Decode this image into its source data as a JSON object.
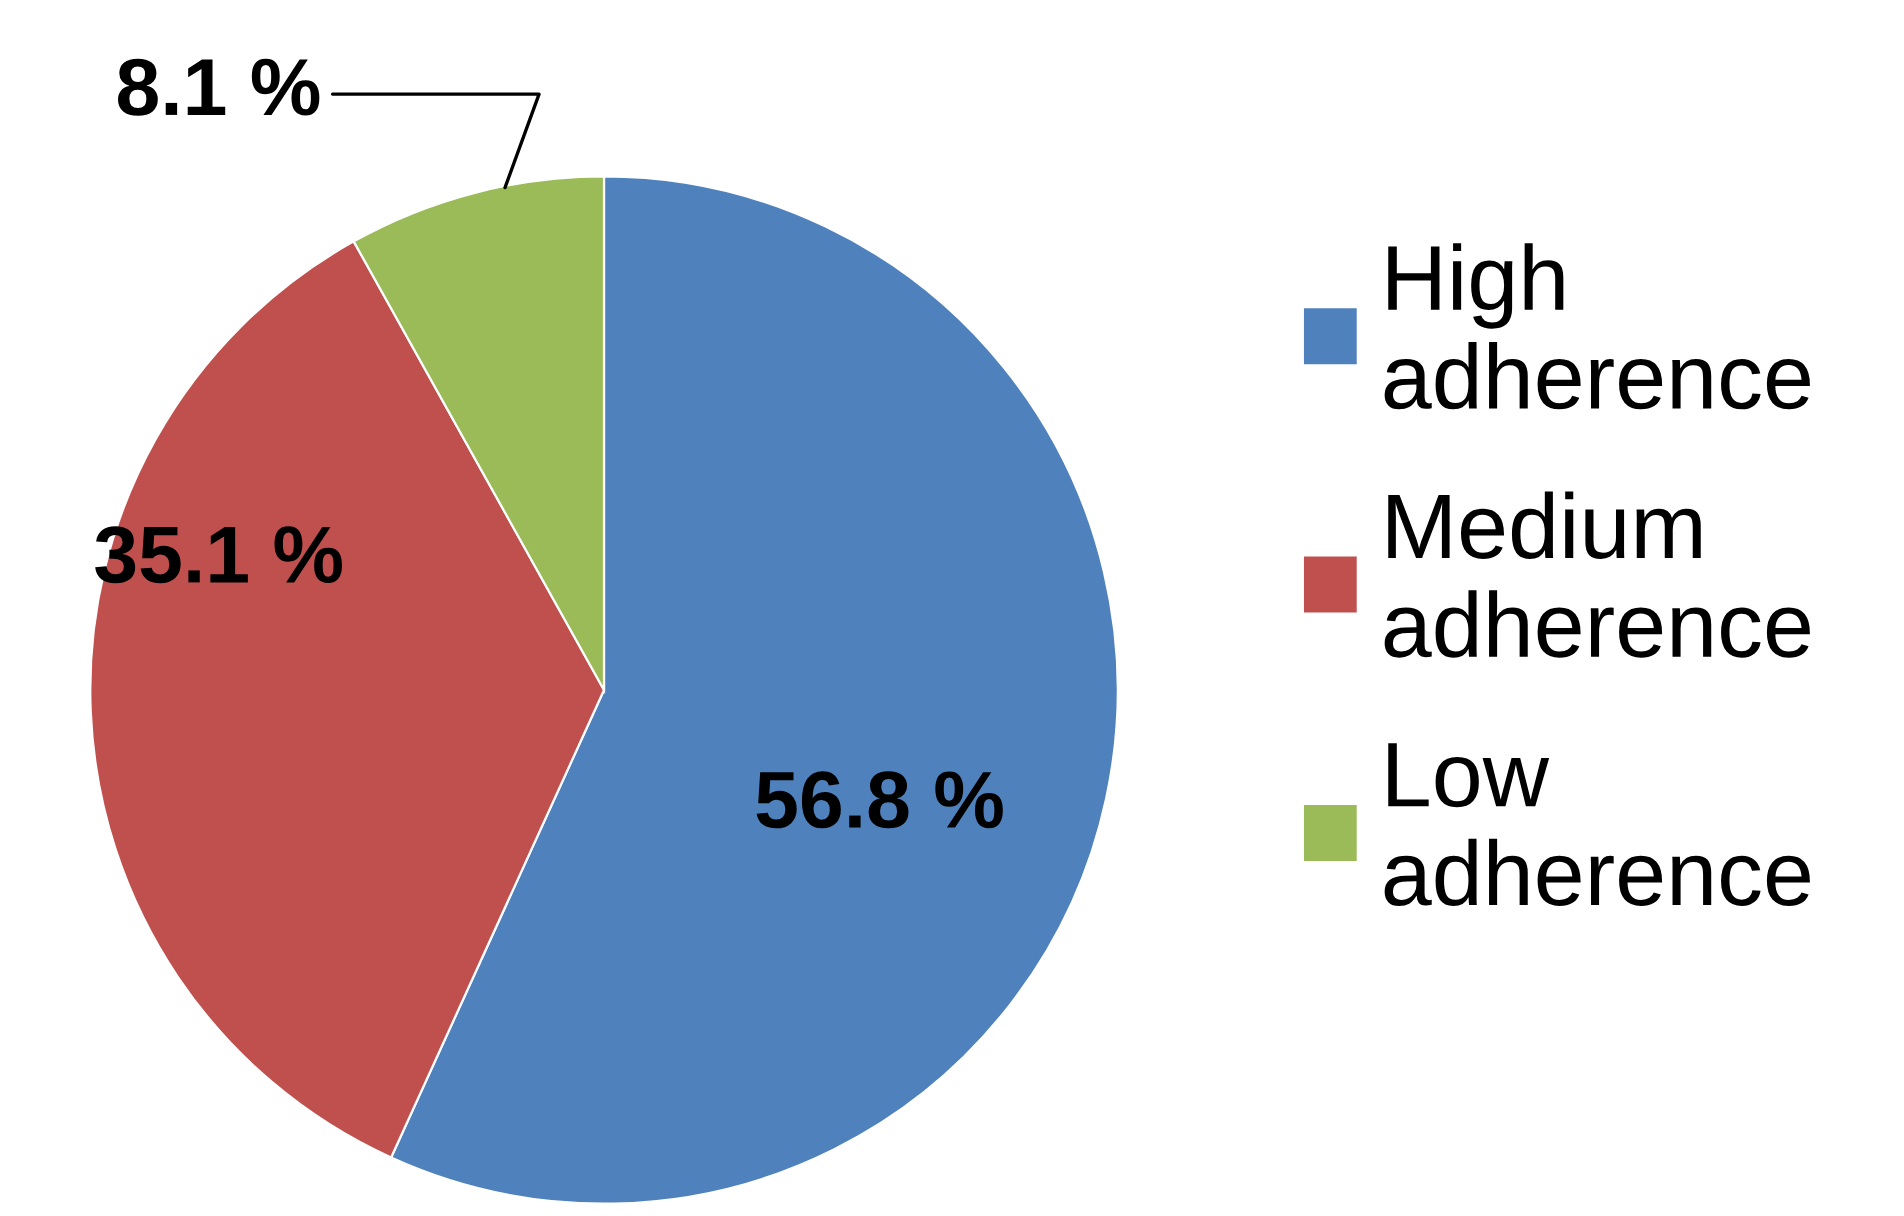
{
  "chart_data": {
    "type": "pie",
    "categories": [
      "High adherence",
      "Medium adherence",
      "Low adherence"
    ],
    "values": [
      56.8,
      35.1,
      8.1
    ],
    "colors": [
      "#4f81bd",
      "#c0504d",
      "#9bbb59"
    ],
    "value_labels": [
      "56.8 %",
      "35.1 %",
      "8.1 %"
    ],
    "legend": "right"
  }
}
